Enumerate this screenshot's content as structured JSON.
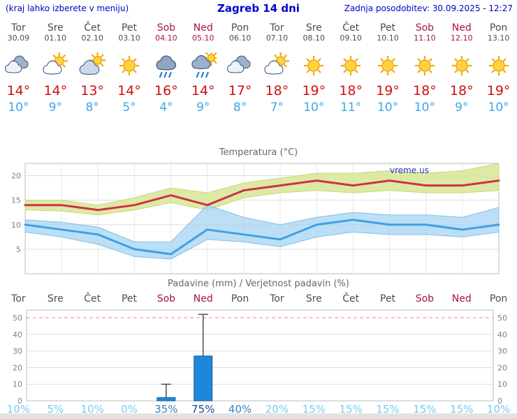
{
  "header": {
    "left_note": "(kraj lahko izberete v meniju)",
    "title": "Zagreb 14 dni",
    "last_update": "Zadnja posodobitev: 30.09.2025 - 12:27"
  },
  "days": [
    {
      "name": "Tor",
      "date": "30.09",
      "weekend": false,
      "icon": "cloudy",
      "temp_high": "14°",
      "temp_low": "10°"
    },
    {
      "name": "Sre",
      "date": "01.10",
      "weekend": false,
      "icon": "partly-cloudy",
      "temp_high": "14°",
      "temp_low": "9°"
    },
    {
      "name": "Čet",
      "date": "02.10",
      "weekend": false,
      "icon": "mostly-cloudy",
      "temp_high": "13°",
      "temp_low": "8°"
    },
    {
      "name": "Pet",
      "date": "03.10",
      "weekend": false,
      "icon": "sunny",
      "temp_high": "14°",
      "temp_low": "5°"
    },
    {
      "name": "Sob",
      "date": "04.10",
      "weekend": true,
      "icon": "rain",
      "temp_high": "16°",
      "temp_low": "4°"
    },
    {
      "name": "Ned",
      "date": "05.10",
      "weekend": true,
      "icon": "rain-sun",
      "temp_high": "14°",
      "temp_low": "9°"
    },
    {
      "name": "Pon",
      "date": "06.10",
      "weekend": false,
      "icon": "cloudy",
      "temp_high": "17°",
      "temp_low": "8°"
    },
    {
      "name": "Tor",
      "date": "07.10",
      "weekend": false,
      "icon": "partly-cloudy",
      "temp_high": "18°",
      "temp_low": "7°"
    },
    {
      "name": "Sre",
      "date": "08.10",
      "weekend": false,
      "icon": "sunny",
      "temp_high": "19°",
      "temp_low": "10°"
    },
    {
      "name": "Čet",
      "date": "09.10",
      "weekend": false,
      "icon": "sunny",
      "temp_high": "18°",
      "temp_low": "11°"
    },
    {
      "name": "Pet",
      "date": "10.10",
      "weekend": false,
      "icon": "sunny",
      "temp_high": "19°",
      "temp_low": "10°"
    },
    {
      "name": "Sob",
      "date": "11.10",
      "weekend": true,
      "icon": "sunny",
      "temp_high": "18°",
      "temp_low": "10°"
    },
    {
      "name": "Ned",
      "date": "12.10",
      "weekend": true,
      "icon": "sunny",
      "temp_high": "18°",
      "temp_low": "9°"
    },
    {
      "name": "Pon",
      "date": "13.10",
      "weekend": false,
      "icon": "sunny",
      "temp_high": "19°",
      "temp_low": "10°"
    }
  ],
  "chart_data": [
    {
      "type": "line",
      "title": "Temperatura (°C)",
      "x": [
        "Tor",
        "Sre",
        "Čet",
        "Pet",
        "Sob",
        "Ned",
        "Pon",
        "Tor",
        "Sre",
        "Čet",
        "Pet",
        "Sob",
        "Ned",
        "Pon"
      ],
      "series": [
        {
          "name": "max",
          "values": [
            14,
            14,
            13,
            14,
            16,
            14,
            17,
            18,
            19,
            18,
            19,
            18,
            18,
            19
          ]
        },
        {
          "name": "max_hi",
          "values": [
            15,
            15,
            14,
            15.5,
            17.5,
            16.5,
            18.5,
            19.5,
            20.5,
            20.5,
            21,
            20.5,
            21,
            22.5
          ]
        },
        {
          "name": "max_lo",
          "values": [
            13,
            12.8,
            12,
            13,
            14.5,
            13,
            15.5,
            16.5,
            17,
            16.5,
            17,
            16.5,
            16.5,
            17
          ]
        },
        {
          "name": "min",
          "values": [
            10,
            9,
            8,
            5,
            4,
            9,
            8,
            7,
            10,
            11,
            10,
            10,
            9,
            10
          ]
        },
        {
          "name": "min_hi",
          "values": [
            11,
            10.5,
            9.5,
            6.5,
            6.5,
            14,
            11.5,
            10,
            11.5,
            12.5,
            12,
            12,
            11.5,
            13.5
          ]
        },
        {
          "name": "min_lo",
          "values": [
            8.5,
            7.5,
            6,
            3.5,
            3,
            7,
            6.5,
            5.5,
            7.5,
            8.5,
            8,
            8,
            7.5,
            8.5
          ]
        }
      ],
      "ylim": [
        0,
        22.5
      ],
      "yticks": [
        5,
        10,
        15,
        20
      ],
      "grid": true,
      "legend": "none",
      "watermark": "vreme.us"
    },
    {
      "type": "bar",
      "title": "Padavine (mm) / Verjetnost padavin (%)",
      "categories": [
        "Tor",
        "Sre",
        "Čet",
        "Pet",
        "Sob",
        "Ned",
        "Pon",
        "Tor",
        "Sre",
        "Čet",
        "Pet",
        "Sob",
        "Ned",
        "Pon"
      ],
      "values": [
        0,
        0,
        0,
        0,
        2,
        27,
        0,
        0,
        0,
        0,
        0,
        0,
        0,
        0
      ],
      "whisker_max": [
        0,
        0,
        0,
        0,
        10,
        52,
        0,
        0,
        0,
        0,
        0,
        0,
        0,
        0
      ],
      "probabilities_pct": [
        10,
        5,
        10,
        0,
        35,
        75,
        40,
        20,
        15,
        15,
        15,
        15,
        15,
        10
      ],
      "probability_labels": [
        "10%",
        "5%",
        "10%",
        "0%",
        "35%",
        "75%",
        "40%",
        "20%",
        "15%",
        "15%",
        "15%",
        "15%",
        "15%",
        "10%"
      ],
      "ylim": [
        0,
        53
      ],
      "yticks": [
        0,
        10,
        20,
        30,
        40,
        50
      ],
      "grid": true
    }
  ],
  "colors": {
    "header_blue": "#0000cc",
    "weekday_text": "#4d4d4d",
    "weekend_text": "#a5134f",
    "temp_high": "#cc1111",
    "temp_low": "#3fa5e8",
    "chart_red_line": "#cc3344",
    "chart_red_band": "#dbe79c",
    "chart_blue_line": "#3da0e8",
    "chart_blue_band": "#a6d4f2",
    "bar_fill": "#1e88d8",
    "bar_stroke": "#1a5f9e",
    "dashed_limit": "#ee8899",
    "watermark_blue": "#2233cc"
  }
}
